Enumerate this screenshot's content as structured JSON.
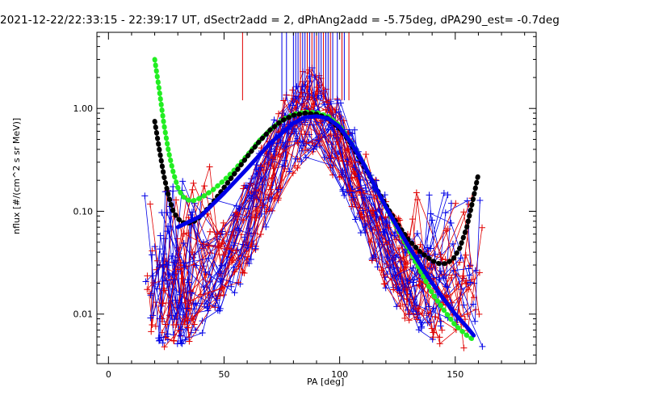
{
  "chart_data": {
    "type": "line",
    "title": "2021-12-22/22:33:15 - 22:39:17 UT, dSectr2add = 2, dPhAng2add = -5.75deg, dPA290_est=  -0.7deg",
    "xlabel": "PA [deg]",
    "ylabel": "nflux [#/(cm^2 s sr MeV)]",
    "xlim": [
      -5,
      185
    ],
    "ylim": [
      0.0033,
      5.5
    ],
    "yscale": "log",
    "xticks": [
      0,
      50,
      100,
      150
    ],
    "xtick_labels": [
      "0",
      "50",
      "100",
      "150"
    ],
    "yticks": [
      0.01,
      0.1,
      1.0
    ],
    "ytick_labels": [
      "0.01",
      "0.10",
      "1.00"
    ],
    "grid": false,
    "colors": {
      "red": "#e00000",
      "blue": "#0000e6",
      "green": "#22ee22",
      "black": "#000000"
    },
    "marker_lines": {
      "red_x": [
        58,
        83,
        86,
        88,
        90,
        93,
        96,
        101,
        104
      ],
      "blue_x": [
        75,
        77,
        80,
        81,
        82,
        84,
        85,
        87,
        89,
        91,
        92,
        94,
        95,
        97,
        99,
        102
      ],
      "top_y": 5.5,
      "bottom_y": 1.2
    },
    "series": [
      {
        "color": "green",
        "style": "thick-dots",
        "x": [
          20,
          22,
          24,
          26,
          28,
          30,
          32,
          34,
          36,
          38,
          40,
          45,
          50,
          55,
          60,
          65,
          70,
          75,
          80,
          85,
          90,
          95,
          100,
          105,
          110,
          115,
          120,
          125,
          130,
          135,
          140,
          145,
          150,
          155,
          158
        ],
        "y": [
          3.0,
          1.5,
          0.7,
          0.38,
          0.24,
          0.17,
          0.14,
          0.13,
          0.125,
          0.13,
          0.135,
          0.16,
          0.2,
          0.26,
          0.35,
          0.48,
          0.62,
          0.77,
          0.88,
          0.92,
          0.91,
          0.84,
          0.68,
          0.46,
          0.3,
          0.18,
          0.11,
          0.068,
          0.042,
          0.026,
          0.016,
          0.011,
          0.0078,
          0.0062,
          0.0056
        ]
      },
      {
        "color": "black",
        "style": "thick-dots",
        "x": [
          20,
          22,
          24,
          26,
          28,
          30,
          32,
          34,
          36,
          38,
          40,
          45,
          50,
          55,
          60,
          65,
          70,
          75,
          80,
          85,
          90,
          95,
          100,
          105,
          110,
          115,
          120,
          125,
          130,
          135,
          140,
          143,
          146,
          149,
          152,
          155,
          158,
          160
        ],
        "y": [
          0.75,
          0.4,
          0.22,
          0.14,
          0.1,
          0.085,
          0.078,
          0.076,
          0.078,
          0.082,
          0.09,
          0.12,
          0.17,
          0.24,
          0.34,
          0.47,
          0.62,
          0.76,
          0.86,
          0.9,
          0.88,
          0.8,
          0.64,
          0.45,
          0.29,
          0.18,
          0.115,
          0.075,
          0.052,
          0.04,
          0.033,
          0.031,
          0.031,
          0.034,
          0.044,
          0.07,
          0.14,
          0.23
        ]
      },
      {
        "color": "blue",
        "style": "thick-line",
        "x": [
          30,
          40,
          50,
          60,
          70,
          80,
          85,
          90,
          95,
          100,
          105,
          110,
          115,
          120,
          125,
          130,
          135,
          140,
          145,
          150,
          155,
          158
        ],
        "y": [
          0.07,
          0.09,
          0.15,
          0.26,
          0.46,
          0.72,
          0.82,
          0.84,
          0.8,
          0.66,
          0.46,
          0.3,
          0.18,
          0.11,
          0.07,
          0.045,
          0.03,
          0.02,
          0.014,
          0.01,
          0.0075,
          0.0062
        ]
      }
    ]
  }
}
